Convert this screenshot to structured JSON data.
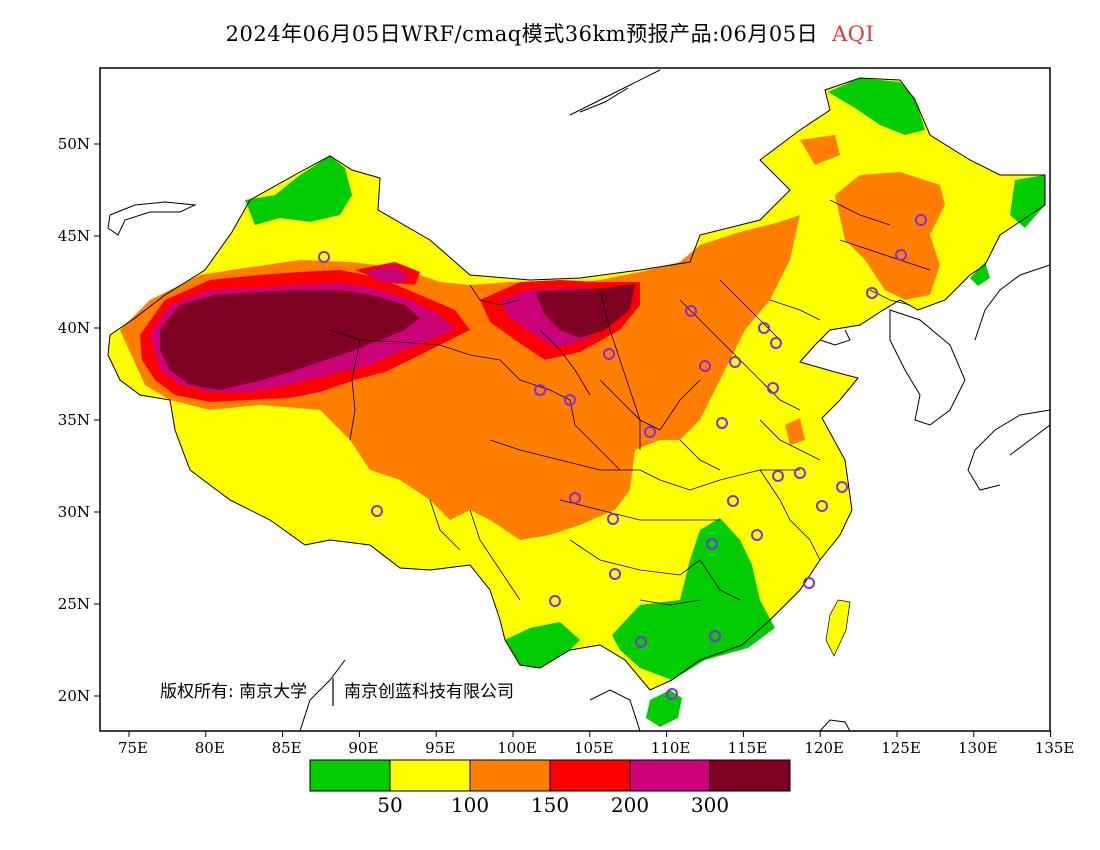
{
  "title": {
    "main": "2024年06月05日WRF/cmaq模式36km预报产品:06月05日",
    "variable": "AQI"
  },
  "axes": {
    "x_ticks": [
      "75E",
      "80E",
      "85E",
      "90E",
      "95E",
      "100E",
      "105E",
      "110E",
      "115E",
      "120E",
      "125E",
      "130E",
      "135E"
    ],
    "y_ticks": [
      "50N",
      "45N",
      "40N",
      "35N",
      "30N",
      "25N",
      "20N"
    ]
  },
  "copyright": {
    "part1": "版权所有: 南京大学",
    "part2": "南京创蓝科技有限公司"
  },
  "colorbar": {
    "colors": [
      "#00cc00",
      "#ffff00",
      "#ff7e00",
      "#ff0000",
      "#cc0077",
      "#7e0023"
    ],
    "labels": [
      "50",
      "100",
      "150",
      "200",
      "300"
    ]
  },
  "map": {
    "colors": {
      "good": "#00cc00",
      "moderate": "#ffff00",
      "sensitive": "#ff7e00",
      "unhealthy": "#ff0000",
      "very_unhealthy": "#cc0077",
      "hazardous": "#7e0023",
      "station_marker": "#8a2be2",
      "boundary": "#000000"
    },
    "station_count": 34
  }
}
